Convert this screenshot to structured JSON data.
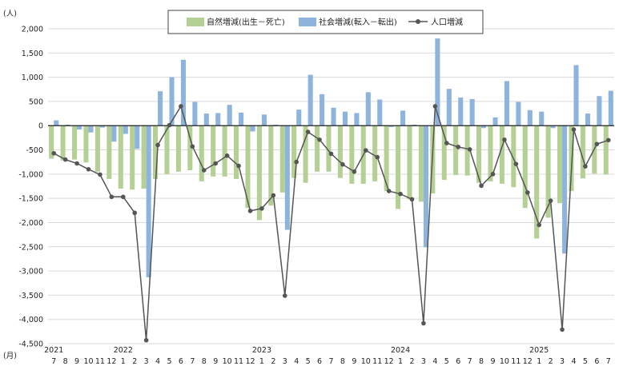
{
  "chart_data": {
    "type": "bar",
    "y_unit_label": "(人)",
    "x_unit_label": "(月)",
    "ylim": [
      -4500,
      2000
    ],
    "yticks": [
      2000,
      1500,
      1000,
      500,
      0,
      -500,
      -1000,
      -1500,
      -2000,
      -2500,
      -3000,
      -3500,
      -4000,
      -4500
    ],
    "ytick_labels": [
      "2,000",
      "1,500",
      "1,000",
      "500",
      "0",
      "-500",
      "-1,000",
      "-1,500",
      "-2,000",
      "-2,500",
      "-3,000",
      "-3,500",
      "-4,000",
      "-4,500"
    ],
    "grid": true,
    "legend_position": "top-center",
    "months": [
      "7",
      "8",
      "9",
      "10",
      "11",
      "12",
      "1",
      "2",
      "3",
      "4",
      "5",
      "6",
      "7",
      "8",
      "9",
      "10",
      "11",
      "12",
      "1",
      "2",
      "3",
      "4",
      "5",
      "6",
      "7",
      "8",
      "9",
      "10",
      "11",
      "12",
      "1",
      "2",
      "3",
      "4",
      "5",
      "6",
      "7",
      "8",
      "9",
      "10",
      "11",
      "12",
      "1",
      "2",
      "3",
      "4",
      "5",
      "6",
      "7"
    ],
    "year_labels": [
      {
        "label": "2021",
        "index": 0
      },
      {
        "label": "2022",
        "index": 6
      },
      {
        "label": "2023",
        "index": 18
      },
      {
        "label": "2024",
        "index": 30
      },
      {
        "label": "2025",
        "index": 42
      }
    ],
    "series": [
      {
        "name": "自然増減(出生－死亡)",
        "kind": "bar",
        "color": "#b5d095",
        "values": [
          -680,
          -720,
          -700,
          -760,
          -950,
          -1100,
          -1300,
          -1320,
          -1300,
          -1100,
          -1000,
          -950,
          -920,
          -1150,
          -1050,
          -1050,
          -1100,
          -1700,
          -1950,
          -1650,
          -1380,
          -1080,
          -1180,
          -950,
          -950,
          -1080,
          -1200,
          -1200,
          -1150,
          -1350,
          -1720,
          -1520,
          -1570,
          -1400,
          -1120,
          -1020,
          -1030,
          -1180,
          -1150,
          -1200,
          -1270,
          -1700,
          -2330,
          -1900,
          -1600,
          -1350,
          -1090,
          -990,
          -1010
        ]
      },
      {
        "name": "社会増減(転入－転出)",
        "kind": "bar",
        "color": "#8eb3dc",
        "values": [
          110,
          20,
          -80,
          -140,
          -40,
          -330,
          -170,
          -480,
          -3130,
          710,
          1000,
          1360,
          490,
          250,
          260,
          430,
          270,
          -120,
          230,
          20,
          -2150,
          330,
          1050,
          650,
          370,
          290,
          260,
          690,
          540,
          -30,
          310,
          20,
          -2510,
          1800,
          760,
          580,
          550,
          -50,
          170,
          920,
          490,
          320,
          290,
          -50,
          -2640,
          1250,
          250,
          610,
          720
        ]
      },
      {
        "name": "人口増減",
        "kind": "line",
        "color": "#555555",
        "values": [
          -570,
          -700,
          -780,
          -900,
          -1010,
          -1470,
          -1470,
          -1800,
          -4430,
          -400,
          10,
          400,
          -430,
          -920,
          -780,
          -620,
          -830,
          -1760,
          -1710,
          -1440,
          -3510,
          -750,
          -130,
          -290,
          -580,
          -800,
          -950,
          -510,
          -650,
          -1350,
          -1410,
          -1520,
          -4080,
          400,
          -360,
          -440,
          -490,
          -1240,
          -1000,
          -290,
          -790,
          -1380,
          -2050,
          -1550,
          -4210,
          -80,
          -840,
          -380,
          -300
        ]
      }
    ]
  }
}
